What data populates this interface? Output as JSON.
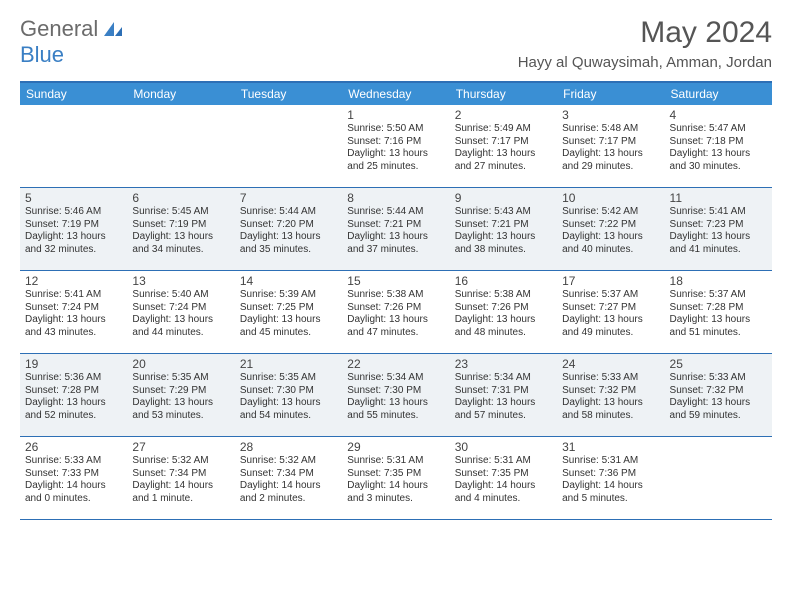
{
  "logo": {
    "general": "General",
    "blue": "Blue"
  },
  "title": "May 2024",
  "subtitle": "Hayy al Quwaysimah, Amman, Jordan",
  "colors": {
    "header_bg": "#3a8fd4",
    "header_border": "#2d6fb5",
    "shade_bg": "#eef2f5",
    "title_color": "#555555",
    "text_color": "#333333"
  },
  "dayHeaders": [
    "Sunday",
    "Monday",
    "Tuesday",
    "Wednesday",
    "Thursday",
    "Friday",
    "Saturday"
  ],
  "weeks": [
    [
      {
        "day": "",
        "sunrise": "",
        "sunset": "",
        "daylight": ""
      },
      {
        "day": "",
        "sunrise": "",
        "sunset": "",
        "daylight": ""
      },
      {
        "day": "",
        "sunrise": "",
        "sunset": "",
        "daylight": ""
      },
      {
        "day": "1",
        "sunrise": "Sunrise: 5:50 AM",
        "sunset": "Sunset: 7:16 PM",
        "daylight": "Daylight: 13 hours and 25 minutes."
      },
      {
        "day": "2",
        "sunrise": "Sunrise: 5:49 AM",
        "sunset": "Sunset: 7:17 PM",
        "daylight": "Daylight: 13 hours and 27 minutes."
      },
      {
        "day": "3",
        "sunrise": "Sunrise: 5:48 AM",
        "sunset": "Sunset: 7:17 PM",
        "daylight": "Daylight: 13 hours and 29 minutes."
      },
      {
        "day": "4",
        "sunrise": "Sunrise: 5:47 AM",
        "sunset": "Sunset: 7:18 PM",
        "daylight": "Daylight: 13 hours and 30 minutes."
      }
    ],
    [
      {
        "day": "5",
        "sunrise": "Sunrise: 5:46 AM",
        "sunset": "Sunset: 7:19 PM",
        "daylight": "Daylight: 13 hours and 32 minutes."
      },
      {
        "day": "6",
        "sunrise": "Sunrise: 5:45 AM",
        "sunset": "Sunset: 7:19 PM",
        "daylight": "Daylight: 13 hours and 34 minutes."
      },
      {
        "day": "7",
        "sunrise": "Sunrise: 5:44 AM",
        "sunset": "Sunset: 7:20 PM",
        "daylight": "Daylight: 13 hours and 35 minutes."
      },
      {
        "day": "8",
        "sunrise": "Sunrise: 5:44 AM",
        "sunset": "Sunset: 7:21 PM",
        "daylight": "Daylight: 13 hours and 37 minutes."
      },
      {
        "day": "9",
        "sunrise": "Sunrise: 5:43 AM",
        "sunset": "Sunset: 7:21 PM",
        "daylight": "Daylight: 13 hours and 38 minutes."
      },
      {
        "day": "10",
        "sunrise": "Sunrise: 5:42 AM",
        "sunset": "Sunset: 7:22 PM",
        "daylight": "Daylight: 13 hours and 40 minutes."
      },
      {
        "day": "11",
        "sunrise": "Sunrise: 5:41 AM",
        "sunset": "Sunset: 7:23 PM",
        "daylight": "Daylight: 13 hours and 41 minutes."
      }
    ],
    [
      {
        "day": "12",
        "sunrise": "Sunrise: 5:41 AM",
        "sunset": "Sunset: 7:24 PM",
        "daylight": "Daylight: 13 hours and 43 minutes."
      },
      {
        "day": "13",
        "sunrise": "Sunrise: 5:40 AM",
        "sunset": "Sunset: 7:24 PM",
        "daylight": "Daylight: 13 hours and 44 minutes."
      },
      {
        "day": "14",
        "sunrise": "Sunrise: 5:39 AM",
        "sunset": "Sunset: 7:25 PM",
        "daylight": "Daylight: 13 hours and 45 minutes."
      },
      {
        "day": "15",
        "sunrise": "Sunrise: 5:38 AM",
        "sunset": "Sunset: 7:26 PM",
        "daylight": "Daylight: 13 hours and 47 minutes."
      },
      {
        "day": "16",
        "sunrise": "Sunrise: 5:38 AM",
        "sunset": "Sunset: 7:26 PM",
        "daylight": "Daylight: 13 hours and 48 minutes."
      },
      {
        "day": "17",
        "sunrise": "Sunrise: 5:37 AM",
        "sunset": "Sunset: 7:27 PM",
        "daylight": "Daylight: 13 hours and 49 minutes."
      },
      {
        "day": "18",
        "sunrise": "Sunrise: 5:37 AM",
        "sunset": "Sunset: 7:28 PM",
        "daylight": "Daylight: 13 hours and 51 minutes."
      }
    ],
    [
      {
        "day": "19",
        "sunrise": "Sunrise: 5:36 AM",
        "sunset": "Sunset: 7:28 PM",
        "daylight": "Daylight: 13 hours and 52 minutes."
      },
      {
        "day": "20",
        "sunrise": "Sunrise: 5:35 AM",
        "sunset": "Sunset: 7:29 PM",
        "daylight": "Daylight: 13 hours and 53 minutes."
      },
      {
        "day": "21",
        "sunrise": "Sunrise: 5:35 AM",
        "sunset": "Sunset: 7:30 PM",
        "daylight": "Daylight: 13 hours and 54 minutes."
      },
      {
        "day": "22",
        "sunrise": "Sunrise: 5:34 AM",
        "sunset": "Sunset: 7:30 PM",
        "daylight": "Daylight: 13 hours and 55 minutes."
      },
      {
        "day": "23",
        "sunrise": "Sunrise: 5:34 AM",
        "sunset": "Sunset: 7:31 PM",
        "daylight": "Daylight: 13 hours and 57 minutes."
      },
      {
        "day": "24",
        "sunrise": "Sunrise: 5:33 AM",
        "sunset": "Sunset: 7:32 PM",
        "daylight": "Daylight: 13 hours and 58 minutes."
      },
      {
        "day": "25",
        "sunrise": "Sunrise: 5:33 AM",
        "sunset": "Sunset: 7:32 PM",
        "daylight": "Daylight: 13 hours and 59 minutes."
      }
    ],
    [
      {
        "day": "26",
        "sunrise": "Sunrise: 5:33 AM",
        "sunset": "Sunset: 7:33 PM",
        "daylight": "Daylight: 14 hours and 0 minutes."
      },
      {
        "day": "27",
        "sunrise": "Sunrise: 5:32 AM",
        "sunset": "Sunset: 7:34 PM",
        "daylight": "Daylight: 14 hours and 1 minute."
      },
      {
        "day": "28",
        "sunrise": "Sunrise: 5:32 AM",
        "sunset": "Sunset: 7:34 PM",
        "daylight": "Daylight: 14 hours and 2 minutes."
      },
      {
        "day": "29",
        "sunrise": "Sunrise: 5:31 AM",
        "sunset": "Sunset: 7:35 PM",
        "daylight": "Daylight: 14 hours and 3 minutes."
      },
      {
        "day": "30",
        "sunrise": "Sunrise: 5:31 AM",
        "sunset": "Sunset: 7:35 PM",
        "daylight": "Daylight: 14 hours and 4 minutes."
      },
      {
        "day": "31",
        "sunrise": "Sunrise: 5:31 AM",
        "sunset": "Sunset: 7:36 PM",
        "daylight": "Daylight: 14 hours and 5 minutes."
      },
      {
        "day": "",
        "sunrise": "",
        "sunset": "",
        "daylight": ""
      }
    ]
  ]
}
